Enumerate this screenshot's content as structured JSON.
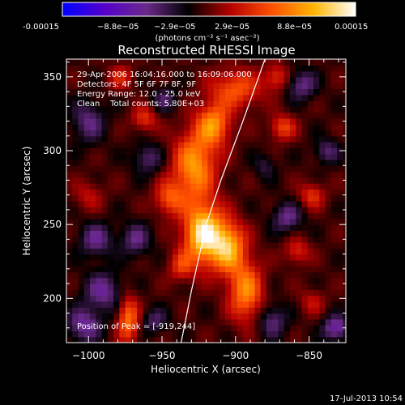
{
  "colorbar": {
    "min": -0.00015,
    "max": 0.00015,
    "tick_labels": [
      "-0.00015",
      "−8.8e−05",
      "−2.9e−05",
      "2.9e−05",
      "8.8e−05",
      "0.00015"
    ],
    "unit_label": "(photons cm⁻² s⁻¹ asec⁻²)",
    "colors": [
      "#0000ff",
      "#5500cc",
      "#6b2a8a",
      "#000000",
      "#b40000",
      "#ff5000",
      "#ffb400",
      "#ffffff"
    ]
  },
  "chart_data": {
    "type": "heatmap",
    "title": "Reconstructed RHESSI Image",
    "xlabel": "Heliocentric X (arcsec)",
    "ylabel": "Heliocentric Y (arcsec)",
    "xlim": [
      -1015,
      -825
    ],
    "ylim": [
      170,
      362
    ],
    "x_ticks": [
      -1000,
      -950,
      -900,
      -850
    ],
    "x_tick_labels": [
      "−1000",
      "−950",
      "−900",
      "−850"
    ],
    "y_ticks": [
      200,
      250,
      300,
      350
    ],
    "y_tick_labels": [
      "200",
      "250",
      "300",
      "350"
    ],
    "annotations": [
      "29-Apr-2006 16:04:16.000 to 16:09:06.000",
      "Detectors: 4F 5F 6F 7F 8F, 9F",
      "Energy Range: 12.0 - 25.0 keV",
      "Clean    Total counts: 5.80E+03"
    ],
    "peak_label": "Position of Peak = [-919,244]",
    "peak": {
      "x": -919,
      "y": 244
    },
    "limb_curve": {
      "x": [
        -880,
        -895,
        -910,
        -920,
        -930,
        -937
      ],
      "y": [
        362,
        320,
        280,
        250,
        205,
        170
      ]
    },
    "sources": [
      {
        "x": -922,
        "y": 244,
        "sx": 9,
        "sy": 14,
        "amp": 1.55
      },
      {
        "x": -905,
        "y": 235,
        "sx": 8,
        "sy": 12,
        "amp": 1.2
      },
      {
        "x": -928,
        "y": 290,
        "sx": 10,
        "sy": 16,
        "amp": 1.1
      },
      {
        "x": -915,
        "y": 318,
        "sx": 8,
        "sy": 10,
        "amp": 1.0
      },
      {
        "x": -893,
        "y": 205,
        "sx": 8,
        "sy": 14,
        "amp": 1.0
      },
      {
        "x": -900,
        "y": 342,
        "sx": 12,
        "sy": 9,
        "amp": 0.75
      },
      {
        "x": -945,
        "y": 268,
        "sx": 7,
        "sy": 8,
        "amp": 0.7
      },
      {
        "x": -937,
        "y": 222,
        "sx": 6,
        "sy": 7,
        "amp": 0.55
      },
      {
        "x": -973,
        "y": 186,
        "sx": 5,
        "sy": 11,
        "amp": 0.9
      },
      {
        "x": -962,
        "y": 322,
        "sx": 6,
        "sy": 6,
        "amp": 0.55
      },
      {
        "x": -978,
        "y": 350,
        "sx": 6,
        "sy": 6,
        "amp": 0.45
      },
      {
        "x": -1000,
        "y": 270,
        "sx": 7,
        "sy": 7,
        "amp": 0.35
      },
      {
        "x": -868,
        "y": 316,
        "sx": 6,
        "sy": 6,
        "amp": 0.65
      },
      {
        "x": -848,
        "y": 270,
        "sx": 6,
        "sy": 6,
        "amp": 0.55
      },
      {
        "x": -858,
        "y": 232,
        "sx": 6,
        "sy": 6,
        "amp": 0.5
      },
      {
        "x": -872,
        "y": 350,
        "sx": 6,
        "sy": 6,
        "amp": 0.55
      },
      {
        "x": -848,
        "y": 198,
        "sx": 6,
        "sy": 6,
        "amp": 0.35
      },
      {
        "x": -990,
        "y": 205,
        "sx": 9,
        "sy": 9,
        "amp": -0.65
      },
      {
        "x": -1003,
        "y": 182,
        "sx": 8,
        "sy": 8,
        "amp": -0.7
      },
      {
        "x": -995,
        "y": 240,
        "sx": 8,
        "sy": 8,
        "amp": -0.6
      },
      {
        "x": -1000,
        "y": 320,
        "sx": 8,
        "sy": 10,
        "amp": -0.55
      },
      {
        "x": -960,
        "y": 295,
        "sx": 7,
        "sy": 7,
        "amp": -0.5
      },
      {
        "x": -968,
        "y": 240,
        "sx": 7,
        "sy": 8,
        "amp": -0.55
      },
      {
        "x": -948,
        "y": 335,
        "sx": 6,
        "sy": 6,
        "amp": -0.45
      },
      {
        "x": -865,
        "y": 255,
        "sx": 7,
        "sy": 7,
        "amp": -0.6
      },
      {
        "x": -855,
        "y": 345,
        "sx": 7,
        "sy": 7,
        "amp": -0.6
      },
      {
        "x": -838,
        "y": 300,
        "sx": 6,
        "sy": 6,
        "amp": -0.5
      },
      {
        "x": -875,
        "y": 185,
        "sx": 7,
        "sy": 8,
        "amp": -0.55
      },
      {
        "x": -832,
        "y": 180,
        "sx": 6,
        "sy": 6,
        "amp": -0.8
      },
      {
        "x": -880,
        "y": 290,
        "sx": 5,
        "sy": 6,
        "amp": -0.35
      },
      {
        "x": -955,
        "y": 185,
        "sx": 6,
        "sy": 6,
        "amp": -0.45
      }
    ]
  },
  "footer": {
    "date": "17-Jul-2013 10:54"
  }
}
